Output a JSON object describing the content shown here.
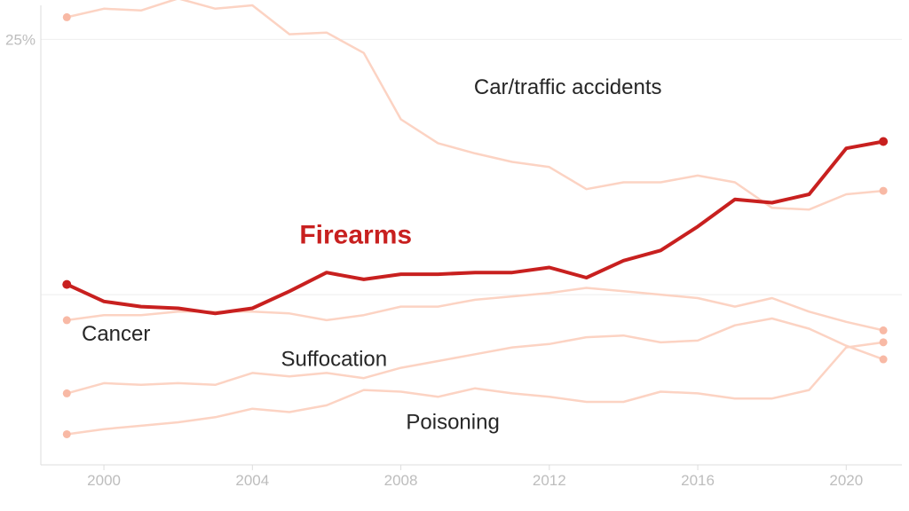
{
  "chart_data": {
    "type": "line",
    "title": "",
    "xlabel": "",
    "ylabel": "",
    "x": [
      1999,
      2000,
      2001,
      2002,
      2003,
      2004,
      2005,
      2006,
      2007,
      2008,
      2009,
      2010,
      2011,
      2012,
      2013,
      2014,
      2015,
      2016,
      2017,
      2018,
      2019,
      2020,
      2021
    ],
    "xlim": [
      1998.3,
      2021.5
    ],
    "ylim": [
      0,
      27
    ],
    "xticks": [
      2000,
      2004,
      2008,
      2012,
      2016,
      2020
    ],
    "xtick_labels": [
      "2000",
      "2004",
      "2008",
      "2012",
      "2016",
      "2020"
    ],
    "yticks": [
      25
    ],
    "ytick_labels": [
      "25%"
    ],
    "colors": {
      "highlight": "#c8201f",
      "muted": "#fcd3c3",
      "muted_marker": "#f8b9a5",
      "label": "#262626",
      "axis": "#dddddd",
      "grid": "#eeeeee"
    },
    "series": [
      {
        "name": "Car/traffic accidents",
        "highlight": false,
        "values": [
          26.3,
          26.8,
          26.7,
          27.4,
          26.8,
          27.0,
          25.3,
          25.4,
          24.2,
          20.3,
          18.9,
          18.3,
          17.8,
          17.5,
          16.2,
          16.6,
          16.6,
          17.0,
          16.6,
          15.1,
          15.0,
          15.9,
          16.1
        ]
      },
      {
        "name": "Firearms",
        "highlight": true,
        "values": [
          10.6,
          9.6,
          9.3,
          9.2,
          8.9,
          9.2,
          10.2,
          11.3,
          10.9,
          11.2,
          11.2,
          11.3,
          11.3,
          11.6,
          11.0,
          12.0,
          12.6,
          14.0,
          15.6,
          15.4,
          15.9,
          18.6,
          19.0
        ]
      },
      {
        "name": "Cancer",
        "highlight": false,
        "values": [
          8.5,
          8.8,
          8.8,
          9.0,
          9.0,
          9.0,
          8.9,
          8.5,
          8.8,
          9.3,
          9.3,
          9.7,
          9.9,
          10.1,
          10.4,
          10.2,
          10.0,
          9.8,
          9.3,
          9.8,
          9.0,
          8.4,
          7.9
        ]
      },
      {
        "name": "Suffocation",
        "highlight": false,
        "values": [
          4.2,
          4.8,
          4.7,
          4.8,
          4.7,
          5.4,
          5.2,
          5.4,
          5.1,
          5.7,
          6.1,
          6.5,
          6.9,
          7.1,
          7.5,
          7.6,
          7.2,
          7.3,
          8.2,
          8.6,
          8.0,
          7.0,
          6.2
        ]
      },
      {
        "name": "Poisoning",
        "highlight": false,
        "values": [
          1.8,
          2.1,
          2.3,
          2.5,
          2.8,
          3.3,
          3.1,
          3.5,
          4.4,
          4.3,
          4.0,
          4.5,
          4.2,
          4.0,
          3.7,
          3.7,
          4.3,
          4.2,
          3.9,
          3.9,
          4.4,
          6.9,
          7.2
        ]
      }
    ],
    "labels": [
      {
        "text": "Car/traffic accidents",
        "x": 2012.5,
        "y": 21.8,
        "anchor": "middle",
        "highlight": false
      },
      {
        "text": "Firearms",
        "x": 2008.3,
        "y": 13.0,
        "anchor": "end",
        "highlight": true
      },
      {
        "text": "Cancer",
        "x": 1999.4,
        "y": 7.3,
        "anchor": "start",
        "highlight": false
      },
      {
        "text": "Suffocation",
        "x": 2006.2,
        "y": 5.8,
        "anchor": "middle",
        "highlight": false
      },
      {
        "text": "Poisoning",
        "x": 2009.4,
        "y": 2.1,
        "anchor": "middle",
        "highlight": false
      }
    ]
  }
}
